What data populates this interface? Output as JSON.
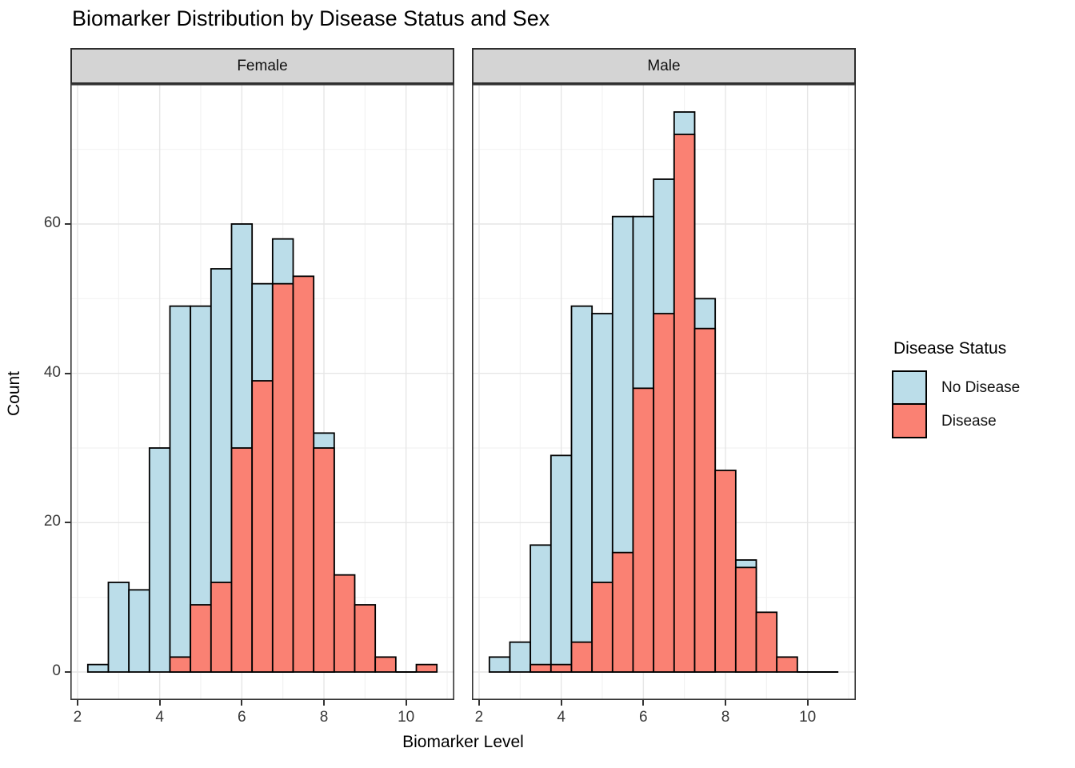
{
  "title": "Biomarker Distribution by Disease Status and Sex",
  "colors": {
    "no_disease": "#BBDDE9",
    "disease": "#FA8173",
    "bar_outline": "#000000",
    "strip_fill": "#D4D4D4",
    "panel_border": "#343434",
    "grid_major": "#E6E6E6",
    "grid_minor": "#F2F2F2",
    "axis_text": "#383838"
  },
  "legend": {
    "title": "Disease Status",
    "items": [
      {
        "label": "No Disease",
        "color_key": "no_disease"
      },
      {
        "label": "Disease",
        "color_key": "disease"
      }
    ]
  },
  "axes": {
    "x_title": "Biomarker Level",
    "y_title": "Count",
    "x_ticks": [
      2,
      4,
      6,
      8,
      10
    ],
    "x_minor": [
      3,
      5,
      7,
      9,
      11
    ],
    "y_ticks": [
      0,
      20,
      40,
      60
    ],
    "y_minor": [
      10,
      30,
      50,
      70
    ],
    "x_domain": [
      1.825,
      11.175
    ],
    "y_domain": [
      -3.75,
      78.75
    ]
  },
  "chart_data": {
    "type": "histogram",
    "position": "identity-overlay",
    "binwidth": 0.5,
    "xlabel": "Biomarker Level",
    "ylabel": "Count",
    "title": "Biomarker Distribution by Disease Status and Sex",
    "legend_position": "right",
    "grid": true,
    "facets": [
      {
        "label": "Female",
        "series": [
          {
            "name": "No Disease",
            "color_key": "no_disease",
            "bins": [
              [
                2.5,
                1
              ],
              [
                3,
                12
              ],
              [
                3.5,
                11
              ],
              [
                4,
                30
              ],
              [
                4.5,
                49
              ],
              [
                5,
                49
              ],
              [
                5.5,
                54
              ],
              [
                6,
                60
              ],
              [
                6.5,
                52
              ],
              [
                7,
                58
              ],
              [
                8,
                32
              ]
            ]
          },
          {
            "name": "Disease",
            "color_key": "disease",
            "bins": [
              [
                4.5,
                2
              ],
              [
                5,
                9
              ],
              [
                5.5,
                12
              ],
              [
                6,
                30
              ],
              [
                6.5,
                39
              ],
              [
                7,
                52
              ],
              [
                7.5,
                53
              ],
              [
                8,
                30
              ],
              [
                8.5,
                13
              ],
              [
                9,
                9
              ],
              [
                9.5,
                2
              ],
              [
                10.5,
                1
              ]
            ]
          }
        ],
        "zero_segments": [
          [
            9.75,
            10.25
          ]
        ]
      },
      {
        "label": "Male",
        "series": [
          {
            "name": "No Disease",
            "color_key": "no_disease",
            "bins": [
              [
                2.5,
                2
              ],
              [
                3,
                4
              ],
              [
                3.5,
                17
              ],
              [
                4,
                29
              ],
              [
                4.5,
                49
              ],
              [
                5,
                48
              ],
              [
                5.5,
                61
              ],
              [
                6,
                61
              ],
              [
                6.5,
                66
              ],
              [
                7,
                75
              ],
              [
                7.5,
                50
              ],
              [
                8.5,
                15
              ]
            ]
          },
          {
            "name": "Disease",
            "color_key": "disease",
            "bins": [
              [
                3.5,
                1
              ],
              [
                4,
                1
              ],
              [
                4.5,
                4
              ],
              [
                5,
                12
              ],
              [
                5.5,
                16
              ],
              [
                6,
                38
              ],
              [
                6.5,
                48
              ],
              [
                7,
                72
              ],
              [
                7.5,
                46
              ],
              [
                8,
                27
              ],
              [
                8.5,
                14
              ],
              [
                9,
                8
              ],
              [
                9.5,
                2
              ]
            ]
          }
        ],
        "zero_segments": [
          [
            9.75,
            10.75
          ]
        ]
      }
    ]
  }
}
